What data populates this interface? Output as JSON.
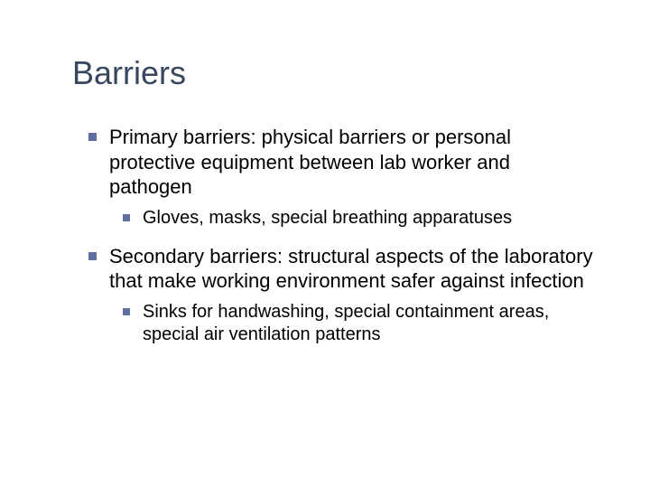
{
  "title": {
    "text": "Barriers",
    "color": "#38465e",
    "fontsize_pt": 36
  },
  "bullet_color": "#5f6da0",
  "body_text_color": "#000000",
  "background_color": "#ffffff",
  "fontsize_level1_pt": 22,
  "fontsize_level2_pt": 20,
  "items": [
    {
      "text": "Primary barriers: physical barriers or personal protective equipment between lab worker and pathogen",
      "sub": [
        {
          "text": "Gloves, masks, special breathing apparatuses"
        }
      ]
    },
    {
      "text": "Secondary barriers: structural aspects of the laboratory that make working environment safer against infection",
      "sub": [
        {
          "text": "Sinks for handwashing, special containment areas, special air ventilation patterns"
        }
      ]
    }
  ]
}
